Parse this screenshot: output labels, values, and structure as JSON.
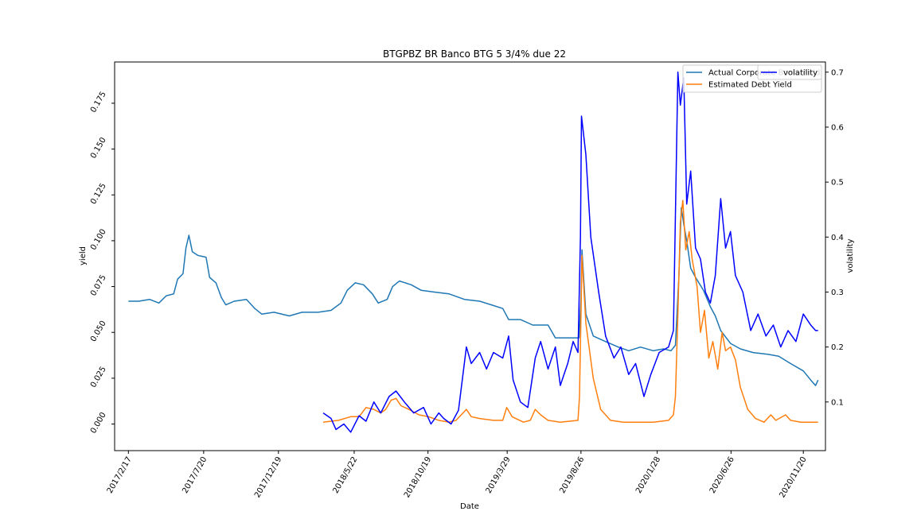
{
  "chart_data": {
    "type": "line",
    "title": "BTGPBZ BR Banco BTG 5 3/4% due 22",
    "xlabel": "Date",
    "ylabel": "yield",
    "y2label": "volatility",
    "xlim": [
      "2017-01-20",
      "2021-01-04"
    ],
    "ylim": [
      -0.0145,
      0.1975
    ],
    "y2lim": [
      0.0115,
      0.7185
    ],
    "x_ticks": [
      "2017/2/17",
      "2017/7/20",
      "2017/12/19",
      "2018/5/22",
      "2018/10/19",
      "2019/3/29",
      "2019/8/26",
      "2020/1/28",
      "2020/6/26",
      "2020/11/20"
    ],
    "y_ticks": [
      0.0,
      0.025,
      0.05,
      0.075,
      0.1,
      0.125,
      0.15,
      0.175
    ],
    "y_tick_labels": [
      "0.000",
      "0.025",
      "0.050",
      "0.075",
      "0.100",
      "0.125",
      "0.150",
      "0.175"
    ],
    "y2_ticks": [
      0.1,
      0.2,
      0.3,
      0.4,
      0.5,
      0.6,
      0.7
    ],
    "y2_tick_labels": [
      "0.1",
      "0.2",
      "0.3",
      "0.4",
      "0.5",
      "0.6",
      "0.7"
    ],
    "legend": {
      "placement": "top-right"
    },
    "grid": false,
    "colors": {
      "actual": "#1f77b4",
      "estimated": "#ff7f0e",
      "volatility": "#0000ff"
    },
    "series": [
      {
        "name": "Actual Corporate Bond Yield",
        "axis": "left",
        "color": "#1f77b4",
        "points": [
          [
            "2017-02-17",
            0.067
          ],
          [
            "2017-03-10",
            0.067
          ],
          [
            "2017-04-01",
            0.068
          ],
          [
            "2017-04-20",
            0.066
          ],
          [
            "2017-05-05",
            0.07
          ],
          [
            "2017-05-20",
            0.071
          ],
          [
            "2017-05-28",
            0.079
          ],
          [
            "2017-06-08",
            0.082
          ],
          [
            "2017-06-14",
            0.096
          ],
          [
            "2017-06-20",
            0.103
          ],
          [
            "2017-06-27",
            0.094
          ],
          [
            "2017-07-08",
            0.092
          ],
          [
            "2017-07-25",
            0.091
          ],
          [
            "2017-08-01",
            0.08
          ],
          [
            "2017-08-14",
            0.077
          ],
          [
            "2017-08-25",
            0.069
          ],
          [
            "2017-09-03",
            0.065
          ],
          [
            "2017-09-20",
            0.067
          ],
          [
            "2017-10-15",
            0.068
          ],
          [
            "2017-11-01",
            0.063
          ],
          [
            "2017-11-15",
            0.06
          ],
          [
            "2017-12-10",
            0.061
          ],
          [
            "2018-01-10",
            0.059
          ],
          [
            "2018-02-05",
            0.061
          ],
          [
            "2018-03-10",
            0.061
          ],
          [
            "2018-04-05",
            0.062
          ],
          [
            "2018-04-25",
            0.066
          ],
          [
            "2018-05-08",
            0.073
          ],
          [
            "2018-05-24",
            0.077
          ],
          [
            "2018-06-10",
            0.076
          ],
          [
            "2018-06-28",
            0.071
          ],
          [
            "2018-07-10",
            0.066
          ],
          [
            "2018-07-28",
            0.068
          ],
          [
            "2018-08-08",
            0.075
          ],
          [
            "2018-08-22",
            0.078
          ],
          [
            "2018-09-15",
            0.076
          ],
          [
            "2018-10-05",
            0.073
          ],
          [
            "2018-11-01",
            0.072
          ],
          [
            "2018-12-01",
            0.071
          ],
          [
            "2019-01-01",
            0.068
          ],
          [
            "2019-02-01",
            0.067
          ],
          [
            "2019-02-25",
            0.065
          ],
          [
            "2019-03-20",
            0.063
          ],
          [
            "2019-04-01",
            0.057
          ],
          [
            "2019-04-25",
            0.057
          ],
          [
            "2019-05-20",
            0.054
          ],
          [
            "2019-06-20",
            0.054
          ],
          [
            "2019-07-05",
            0.047
          ],
          [
            "2019-07-25",
            0.047
          ],
          [
            "2019-08-22",
            0.047
          ],
          [
            "2019-08-26",
            0.068
          ],
          [
            "2019-08-28",
            0.095
          ],
          [
            "2019-09-05",
            0.06
          ],
          [
            "2019-09-20",
            0.048
          ],
          [
            "2019-10-15",
            0.045
          ],
          [
            "2019-11-10",
            0.042
          ],
          [
            "2019-12-01",
            0.04
          ],
          [
            "2019-12-25",
            0.042
          ],
          [
            "2020-01-20",
            0.04
          ],
          [
            "2020-02-10",
            0.041
          ],
          [
            "2020-02-25",
            0.04
          ],
          [
            "2020-03-05",
            0.043
          ],
          [
            "2020-03-12",
            0.08
          ],
          [
            "2020-03-17",
            0.118
          ],
          [
            "2020-03-22",
            0.109
          ],
          [
            "2020-03-28",
            0.1
          ],
          [
            "2020-04-05",
            0.085
          ],
          [
            "2020-04-15",
            0.08
          ],
          [
            "2020-05-01",
            0.073
          ],
          [
            "2020-05-15",
            0.064
          ],
          [
            "2020-05-25",
            0.059
          ],
          [
            "2020-06-05",
            0.051
          ],
          [
            "2020-06-25",
            0.044
          ],
          [
            "2020-07-15",
            0.041
          ],
          [
            "2020-08-10",
            0.039
          ],
          [
            "2020-09-10",
            0.038
          ],
          [
            "2020-10-01",
            0.037
          ],
          [
            "2020-10-25",
            0.033
          ],
          [
            "2020-11-20",
            0.029
          ],
          [
            "2020-12-05",
            0.024
          ],
          [
            "2020-12-15",
            0.021
          ],
          [
            "2020-12-20",
            0.024
          ]
        ]
      },
      {
        "name": "Estimated Debt Yield",
        "axis": "left",
        "color": "#ff7f0e",
        "points": [
          [
            "2018-03-20",
            0.001
          ],
          [
            "2018-04-20",
            0.002
          ],
          [
            "2018-05-15",
            0.004
          ],
          [
            "2018-06-01",
            0.004
          ],
          [
            "2018-06-15",
            0.009
          ],
          [
            "2018-07-01",
            0.008
          ],
          [
            "2018-07-15",
            0.006
          ],
          [
            "2018-07-25",
            0.008
          ],
          [
            "2018-08-05",
            0.013
          ],
          [
            "2018-08-15",
            0.014
          ],
          [
            "2018-08-25",
            0.01
          ],
          [
            "2018-09-10",
            0.008
          ],
          [
            "2018-10-01",
            0.005
          ],
          [
            "2018-10-20",
            0.004
          ],
          [
            "2018-11-10",
            0.002
          ],
          [
            "2018-12-01",
            0.001
          ],
          [
            "2018-12-15",
            0.002
          ],
          [
            "2019-01-05",
            0.008
          ],
          [
            "2019-01-15",
            0.004
          ],
          [
            "2019-02-01",
            0.003
          ],
          [
            "2019-03-01",
            0.002
          ],
          [
            "2019-03-20",
            0.002
          ],
          [
            "2019-03-28",
            0.009
          ],
          [
            "2019-04-08",
            0.004
          ],
          [
            "2019-05-01",
            0.001
          ],
          [
            "2019-05-15",
            0.002
          ],
          [
            "2019-05-25",
            0.008
          ],
          [
            "2019-06-05",
            0.005
          ],
          [
            "2019-06-20",
            0.002
          ],
          [
            "2019-07-15",
            0.001
          ],
          [
            "2019-08-20",
            0.002
          ],
          [
            "2019-08-23",
            0.015
          ],
          [
            "2019-08-26",
            0.06
          ],
          [
            "2019-08-28",
            0.092
          ],
          [
            "2019-09-05",
            0.055
          ],
          [
            "2019-09-20",
            0.025
          ],
          [
            "2019-10-05",
            0.008
          ],
          [
            "2019-10-25",
            0.002
          ],
          [
            "2019-11-20",
            0.001
          ],
          [
            "2020-01-20",
            0.001
          ],
          [
            "2020-02-20",
            0.002
          ],
          [
            "2020-03-01",
            0.005
          ],
          [
            "2020-03-05",
            0.015
          ],
          [
            "2020-03-10",
            0.06
          ],
          [
            "2020-03-15",
            0.11
          ],
          [
            "2020-03-20",
            0.122
          ],
          [
            "2020-03-26",
            0.095
          ],
          [
            "2020-04-02",
            0.105
          ],
          [
            "2020-04-08",
            0.09
          ],
          [
            "2020-04-18",
            0.075
          ],
          [
            "2020-04-25",
            0.05
          ],
          [
            "2020-05-03",
            0.062
          ],
          [
            "2020-05-12",
            0.036
          ],
          [
            "2020-05-20",
            0.045
          ],
          [
            "2020-05-30",
            0.03
          ],
          [
            "2020-06-08",
            0.05
          ],
          [
            "2020-06-15",
            0.04
          ],
          [
            "2020-06-25",
            0.042
          ],
          [
            "2020-07-05",
            0.035
          ],
          [
            "2020-07-15",
            0.02
          ],
          [
            "2020-07-30",
            0.008
          ],
          [
            "2020-08-15",
            0.003
          ],
          [
            "2020-09-01",
            0.001
          ],
          [
            "2020-09-15",
            0.005
          ],
          [
            "2020-09-25",
            0.002
          ],
          [
            "2020-10-15",
            0.005
          ],
          [
            "2020-10-25",
            0.002
          ],
          [
            "2020-11-15",
            0.001
          ],
          [
            "2020-12-20",
            0.001
          ]
        ]
      },
      {
        "name": "volatility",
        "axis": "right",
        "color": "#0000ff",
        "points": [
          [
            "2018-03-20",
            0.08
          ],
          [
            "2018-04-05",
            0.07
          ],
          [
            "2018-04-15",
            0.05
          ],
          [
            "2018-05-01",
            0.06
          ],
          [
            "2018-05-15",
            0.045
          ],
          [
            "2018-06-01",
            0.075
          ],
          [
            "2018-06-15",
            0.065
          ],
          [
            "2018-07-01",
            0.1
          ],
          [
            "2018-07-15",
            0.08
          ],
          [
            "2018-08-01",
            0.11
          ],
          [
            "2018-08-15",
            0.12
          ],
          [
            "2018-09-01",
            0.1
          ],
          [
            "2018-09-20",
            0.08
          ],
          [
            "2018-10-10",
            0.09
          ],
          [
            "2018-10-25",
            0.06
          ],
          [
            "2018-11-10",
            0.08
          ],
          [
            "2018-11-20",
            0.07
          ],
          [
            "2018-12-05",
            0.06
          ],
          [
            "2018-12-20",
            0.085
          ],
          [
            "2019-01-05",
            0.2
          ],
          [
            "2019-01-15",
            0.17
          ],
          [
            "2019-02-01",
            0.19
          ],
          [
            "2019-02-15",
            0.16
          ],
          [
            "2019-03-01",
            0.19
          ],
          [
            "2019-03-20",
            0.18
          ],
          [
            "2019-04-01",
            0.22
          ],
          [
            "2019-04-10",
            0.14
          ],
          [
            "2019-04-25",
            0.1
          ],
          [
            "2019-05-10",
            0.09
          ],
          [
            "2019-05-25",
            0.18
          ],
          [
            "2019-06-05",
            0.21
          ],
          [
            "2019-06-20",
            0.16
          ],
          [
            "2019-07-05",
            0.2
          ],
          [
            "2019-07-15",
            0.13
          ],
          [
            "2019-07-30",
            0.17
          ],
          [
            "2019-08-10",
            0.21
          ],
          [
            "2019-08-20",
            0.19
          ],
          [
            "2019-08-25",
            0.4
          ],
          [
            "2019-08-27",
            0.62
          ],
          [
            "2019-09-05",
            0.55
          ],
          [
            "2019-09-15",
            0.4
          ],
          [
            "2019-10-01",
            0.3
          ],
          [
            "2019-10-15",
            0.22
          ],
          [
            "2019-11-01",
            0.18
          ],
          [
            "2019-11-15",
            0.2
          ],
          [
            "2019-12-01",
            0.15
          ],
          [
            "2019-12-15",
            0.17
          ],
          [
            "2020-01-01",
            0.11
          ],
          [
            "2020-01-15",
            0.15
          ],
          [
            "2020-02-01",
            0.19
          ],
          [
            "2020-02-20",
            0.2
          ],
          [
            "2020-03-01",
            0.23
          ],
          [
            "2020-03-10",
            0.7
          ],
          [
            "2020-03-15",
            0.64
          ],
          [
            "2020-03-22",
            0.69
          ],
          [
            "2020-03-28",
            0.46
          ],
          [
            "2020-04-05",
            0.52
          ],
          [
            "2020-04-15",
            0.38
          ],
          [
            "2020-04-25",
            0.36
          ],
          [
            "2020-05-05",
            0.3
          ],
          [
            "2020-05-15",
            0.28
          ],
          [
            "2020-05-25",
            0.33
          ],
          [
            "2020-06-05",
            0.47
          ],
          [
            "2020-06-15",
            0.38
          ],
          [
            "2020-06-25",
            0.41
          ],
          [
            "2020-07-05",
            0.33
          ],
          [
            "2020-07-20",
            0.3
          ],
          [
            "2020-08-05",
            0.23
          ],
          [
            "2020-08-20",
            0.26
          ],
          [
            "2020-09-05",
            0.22
          ],
          [
            "2020-09-20",
            0.24
          ],
          [
            "2020-10-05",
            0.2
          ],
          [
            "2020-10-20",
            0.23
          ],
          [
            "2020-11-05",
            0.21
          ],
          [
            "2020-11-20",
            0.26
          ],
          [
            "2020-12-05",
            0.24
          ],
          [
            "2020-12-15",
            0.23
          ],
          [
            "2020-12-20",
            0.23
          ]
        ]
      }
    ]
  }
}
